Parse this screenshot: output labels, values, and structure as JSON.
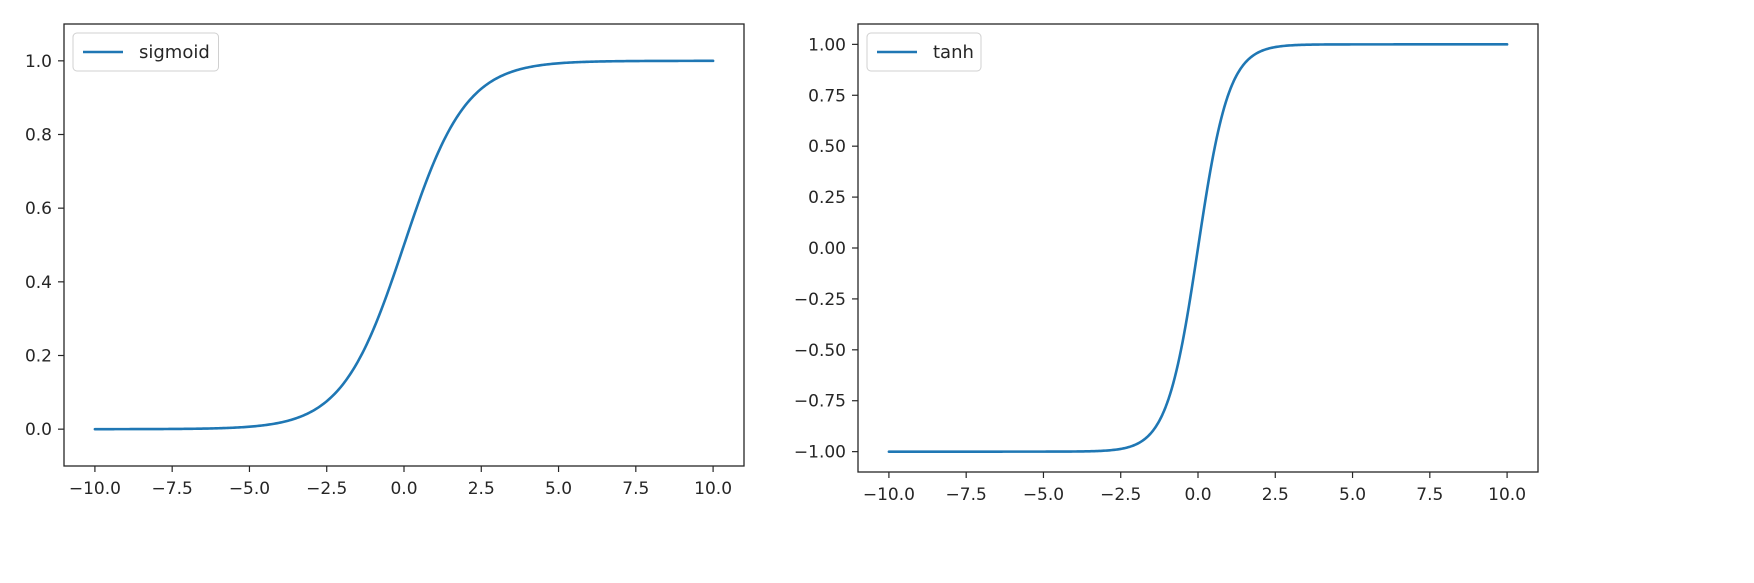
{
  "colors": {
    "line": "#1f77b4",
    "axis": "#262626",
    "legend_border": "#d0d0d0"
  },
  "chart_data": [
    {
      "type": "line",
      "function": "sigmoid",
      "xlim": [
        -11.0,
        11.0
      ],
      "ylim": [
        -0.1,
        1.1
      ],
      "xticks": [
        -10.0,
        -7.5,
        -5.0,
        -2.5,
        0.0,
        2.5,
        5.0,
        7.5,
        10.0
      ],
      "xtick_labels": [
        "−10.0",
        "−7.5",
        "−5.0",
        "−2.5",
        "0.0",
        "2.5",
        "5.0",
        "7.5",
        "10.0"
      ],
      "yticks": [
        0.0,
        0.2,
        0.4,
        0.6,
        0.8,
        1.0
      ],
      "ytick_labels": [
        "0.0",
        "0.2",
        "0.4",
        "0.6",
        "0.8",
        "1.0"
      ],
      "x_range": [
        -10.0,
        10.0
      ],
      "series": [
        {
          "name": "sigmoid",
          "x": [
            -10.0,
            -7.5,
            -5.0,
            -2.5,
            0.0,
            2.5,
            5.0,
            7.5,
            10.0
          ],
          "y": [
            4.54e-05,
            0.000553,
            0.00669,
            0.0759,
            0.5,
            0.924,
            0.993,
            0.99945,
            0.99995
          ]
        }
      ],
      "legend": {
        "position": "upper-left",
        "entries": [
          "sigmoid"
        ]
      },
      "grid": false
    },
    {
      "type": "line",
      "function": "tanh",
      "xlim": [
        -11.0,
        11.0
      ],
      "ylim": [
        -1.1,
        1.1
      ],
      "xticks": [
        -10.0,
        -7.5,
        -5.0,
        -2.5,
        0.0,
        2.5,
        5.0,
        7.5,
        10.0
      ],
      "xtick_labels": [
        "−10.0",
        "−7.5",
        "−5.0",
        "−2.5",
        "0.0",
        "2.5",
        "5.0",
        "7.5",
        "10.0"
      ],
      "yticks": [
        -1.0,
        -0.75,
        -0.5,
        -0.25,
        0.0,
        0.25,
        0.5,
        0.75,
        1.0
      ],
      "ytick_labels": [
        "−1.00",
        "−0.75",
        "−0.50",
        "−0.25",
        "0.00",
        "0.25",
        "0.50",
        "0.75",
        "1.00"
      ],
      "x_range": [
        -10.0,
        10.0
      ],
      "series": [
        {
          "name": "tanh",
          "x": [
            -10.0,
            -7.5,
            -5.0,
            -2.5,
            0.0,
            2.5,
            5.0,
            7.5,
            10.0
          ],
          "y": [
            -1.0,
            -1.0,
            -0.9999,
            -0.9866,
            0.0,
            0.9866,
            0.9999,
            1.0,
            1.0
          ]
        }
      ],
      "legend": {
        "position": "upper-left",
        "entries": [
          "tanh"
        ]
      },
      "grid": false
    }
  ]
}
